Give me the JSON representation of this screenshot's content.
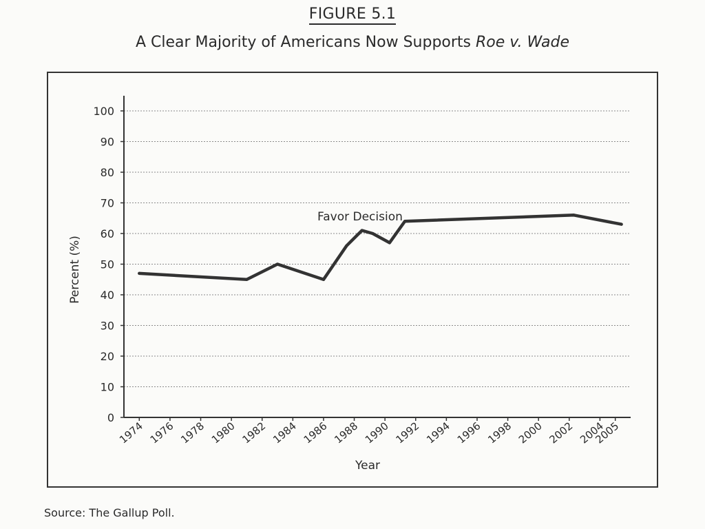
{
  "figure": {
    "label": "FIGURE 5.1",
    "title_main": "A Clear Majority of Americans Now Supports ",
    "title_case": "Roe v. Wade"
  },
  "source": "Source: The Gallup Poll.",
  "chart_data": {
    "type": "line",
    "title": "A Clear Majority of Americans Now Supports Roe v. Wade",
    "xlabel": "Year",
    "ylabel": "Percent (%)",
    "ylim": [
      0,
      100
    ],
    "yticks": [
      0,
      10,
      20,
      30,
      40,
      50,
      60,
      70,
      80,
      90,
      100
    ],
    "xlim": [
      1973,
      2006
    ],
    "xticks": [
      1974,
      1976,
      1978,
      1980,
      1982,
      1984,
      1986,
      1988,
      1990,
      1992,
      1994,
      1996,
      1998,
      2000,
      2002,
      2004,
      2005
    ],
    "grid": true,
    "series": [
      {
        "name": "Favor Decision",
        "x": [
          1974,
          1981,
          1983,
          1986,
          1987.5,
          1988.5,
          1989.2,
          1990.3,
          1991.3,
          2002.3,
          2005.4
        ],
        "values": [
          47,
          45,
          50,
          45,
          56,
          61,
          60,
          57,
          64,
          66,
          63
        ],
        "color": "#333333"
      }
    ]
  }
}
